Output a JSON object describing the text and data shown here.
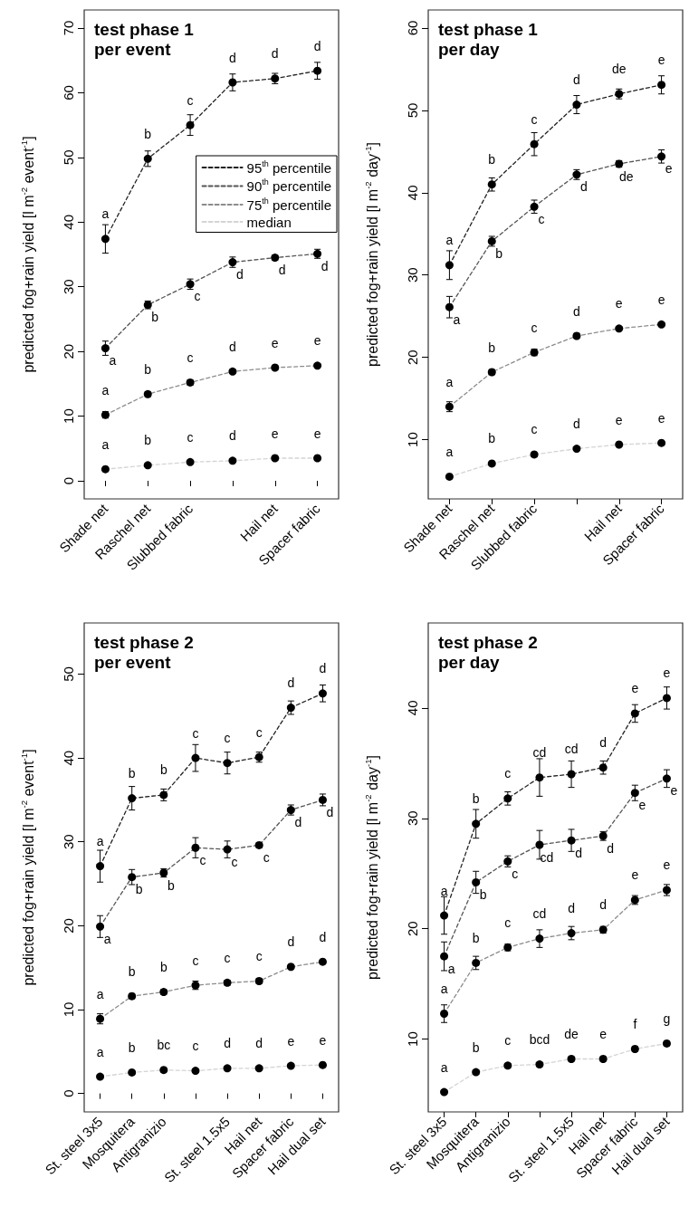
{
  "chart_data": [
    {
      "type": "line",
      "title": "test phase 1",
      "subtitle": "per event",
      "ylabel": "predicted fog+rain yield [l m$^{-2}$ event$^{-1}$]",
      "categories": [
        "Shade net",
        "Raschel net",
        "Slubbed fabric",
        null,
        "Hail net",
        "Spacer fabric"
      ],
      "ylim": [
        -2.8,
        72.8
      ],
      "yticks": [
        0,
        10,
        20,
        30,
        40,
        50,
        60,
        70
      ],
      "grid": false,
      "legend": "right",
      "marker": "circle",
      "line_style": "dashed",
      "series": [
        {
          "name": "95$^{th}$ percentile",
          "color": "#222222",
          "values": [
            37.4,
            49.8,
            55.0,
            61.6,
            62.2,
            63.4
          ],
          "errors": [
            2.2,
            1.2,
            1.6,
            1.3,
            0.8,
            1.3
          ],
          "value_labels": [
            "a",
            "b",
            "c",
            "d",
            "d",
            "d"
          ]
        },
        {
          "name": "90$^{th}$ percentile",
          "color": "#555555",
          "values": [
            20.5,
            27.2,
            30.4,
            33.8,
            34.5,
            35.1
          ],
          "errors": [
            1.1,
            0.6,
            0.8,
            0.8,
            0.4,
            0.7
          ],
          "value_labels": [
            "a",
            "b",
            "c",
            "d",
            "d",
            "d"
          ]
        },
        {
          "name": "75$^{th}$ percentile",
          "color": "#8c8c8c",
          "values": [
            10.2,
            13.4,
            15.2,
            16.9,
            17.5,
            17.8
          ],
          "errors": [
            0.5,
            0.4,
            0.4,
            0.3,
            0.3,
            0.3
          ],
          "value_labels": [
            "a",
            "b",
            "c",
            "d",
            "e",
            "e"
          ]
        },
        {
          "name": "median",
          "color": "#d4d4d4",
          "values": [
            1.8,
            2.4,
            2.9,
            3.1,
            3.5,
            3.5
          ],
          "errors": [
            0.2,
            0.2,
            0.2,
            0.2,
            0.2,
            0.2
          ],
          "value_labels": [
            "a",
            "b",
            "c",
            "d",
            "e",
            "e"
          ]
        }
      ]
    },
    {
      "type": "line",
      "title": "test phase 1",
      "subtitle": "per day",
      "ylabel": "predicted fog+rain yield [l m$^{-2}$ day$^{-1}$]",
      "categories": [
        "Shade net",
        "Raschel net",
        "Slubbed fabric",
        null,
        "Hail net",
        "Spacer fabric"
      ],
      "ylim": [
        2.8,
        62.2
      ],
      "yticks": [
        10,
        20,
        30,
        40,
        50,
        60
      ],
      "grid": false,
      "legend": false,
      "marker": "circle",
      "line_style": "dashed",
      "series": [
        {
          "color": "#222222",
          "values": [
            31.2,
            41.0,
            45.9,
            50.7,
            52.0,
            53.1
          ],
          "errors": [
            1.75,
            0.8,
            1.4,
            1.1,
            0.6,
            1.1
          ],
          "value_labels": [
            "a",
            "b",
            "c",
            "d",
            "de",
            "e"
          ]
        },
        {
          "color": "#555555",
          "values": [
            26.1,
            34.1,
            38.3,
            42.2,
            43.5,
            44.4
          ],
          "errors": [
            1.3,
            0.6,
            0.8,
            0.6,
            0.4,
            0.8
          ],
          "value_labels": [
            "a",
            "b",
            "c",
            "d",
            "de",
            "e"
          ]
        },
        {
          "color": "#8c8c8c",
          "values": [
            14.0,
            18.2,
            20.6,
            22.6,
            23.5,
            24.0
          ],
          "errors": [
            0.6,
            0.3,
            0.4,
            0.3,
            0.2,
            0.2
          ],
          "value_labels": [
            "a",
            "b",
            "c",
            "d",
            "e",
            "e"
          ]
        },
        {
          "color": "#d4d4d4",
          "values": [
            5.5,
            7.1,
            8.2,
            8.9,
            9.4,
            9.6
          ],
          "errors": [
            0.2,
            0.2,
            0.2,
            0.2,
            0.2,
            0.2
          ],
          "value_labels": [
            "a",
            "b",
            "c",
            "d",
            "e",
            "e"
          ]
        }
      ]
    },
    {
      "type": "line",
      "title": "test phase 2",
      "subtitle": "per event",
      "ylabel": "predicted fog+rain yield [l m$^{-2}$ event$^{-1}$]",
      "categories": [
        "St. steel 3x5",
        "Mosquitera",
        "Antigranizio",
        null,
        "St. steel 1.5x5",
        "Hail net",
        "Spacer fabric",
        "Hail dual set"
      ],
      "ylim": [
        -2.2,
        56.1
      ],
      "yticks": [
        0,
        10,
        20,
        30,
        40,
        50
      ],
      "grid": false,
      "legend": false,
      "marker": "circle",
      "line_style": "dashed",
      "series": [
        {
          "color": "#222222",
          "values": [
            27.1,
            35.2,
            35.6,
            40.0,
            39.4,
            40.1,
            46.0,
            47.7
          ],
          "errors": [
            1.9,
            1.4,
            0.7,
            1.6,
            1.3,
            0.6,
            0.8,
            1.0
          ],
          "value_labels": [
            "a",
            "b",
            "b",
            "c",
            "c",
            "c",
            "d",
            "d"
          ]
        },
        {
          "color": "#555555",
          "values": [
            19.9,
            25.8,
            26.3,
            29.3,
            29.1,
            29.6,
            33.8,
            35.0
          ],
          "errors": [
            1.3,
            0.9,
            0.5,
            1.2,
            1.0,
            0.3,
            0.6,
            0.7
          ],
          "value_labels": [
            "a",
            "b",
            "b",
            "c",
            "c",
            "c",
            "d",
            "d"
          ]
        },
        {
          "color": "#8c8c8c",
          "values": [
            8.9,
            11.6,
            12.1,
            12.9,
            13.2,
            13.4,
            15.1,
            15.7
          ],
          "errors": [
            0.6,
            0.3,
            0.3,
            0.5,
            0.3,
            0.3,
            0.2,
            0.2
          ],
          "value_labels": [
            "a",
            "b",
            "b",
            "c",
            "c",
            "c",
            "d",
            "d"
          ]
        },
        {
          "color": "#d4d4d4",
          "values": [
            2.0,
            2.5,
            2.8,
            2.7,
            3.0,
            3.0,
            3.3,
            3.4
          ],
          "errors": [
            0.2,
            0.2,
            0.2,
            0.2,
            0.2,
            0.2,
            0.2,
            0.2
          ],
          "value_labels": [
            "a",
            "b",
            "bc",
            "c",
            "d",
            "d",
            "e",
            "e"
          ]
        }
      ]
    },
    {
      "type": "line",
      "title": "test phase 2",
      "subtitle": "per day",
      "ylabel": "predicted fog+rain yield [l m$^{-2}$ day$^{-1}$]",
      "categories": [
        "St. steel 3x5",
        "Mosquitera",
        "Antigranizio",
        null,
        "St. steel 1.5x5",
        "Hail net",
        "Spacer fabric",
        "Hail dual set"
      ],
      "ylim": [
        3.4,
        47.7
      ],
      "yticks": [
        10,
        20,
        30,
        40
      ],
      "grid": false,
      "legend": false,
      "marker": "circle",
      "line_style": "dashed",
      "series": [
        {
          "color": "#222222",
          "values": [
            21.2,
            29.5,
            31.8,
            33.7,
            34.0,
            34.6,
            39.5,
            40.9
          ],
          "errors": [
            1.7,
            1.3,
            0.6,
            1.7,
            1.2,
            0.6,
            0.8,
            1.0
          ],
          "value_labels": [
            "a",
            "b",
            "c",
            "cd",
            "cd",
            "d",
            "e",
            "e"
          ]
        },
        {
          "color": "#555555",
          "values": [
            17.5,
            24.2,
            26.1,
            27.6,
            28.0,
            28.4,
            32.3,
            33.6
          ],
          "errors": [
            1.3,
            1.0,
            0.5,
            1.3,
            1.0,
            0.4,
            0.7,
            0.8
          ],
          "value_labels": [
            "a",
            "b",
            "c",
            "cd",
            "d",
            "d",
            "e",
            "e"
          ]
        },
        {
          "color": "#8c8c8c",
          "values": [
            12.3,
            16.9,
            18.3,
            19.1,
            19.6,
            19.9,
            22.6,
            23.5
          ],
          "errors": [
            0.8,
            0.6,
            0.3,
            0.8,
            0.6,
            0.3,
            0.4,
            0.5
          ],
          "value_labels": [
            "a",
            "b",
            "c",
            "cd",
            "d",
            "d",
            "e",
            "e"
          ]
        },
        {
          "color": "#d4d4d4",
          "values": [
            5.2,
            7.0,
            7.6,
            7.7,
            8.2,
            8.2,
            9.1,
            9.6
          ],
          "errors": [
            0.2,
            0.2,
            0.2,
            0.2,
            0.2,
            0.2,
            0.2,
            0.2
          ],
          "value_labels": [
            "a",
            "b",
            "c",
            "bcd",
            "de",
            "e",
            "f",
            "g"
          ]
        }
      ]
    }
  ]
}
